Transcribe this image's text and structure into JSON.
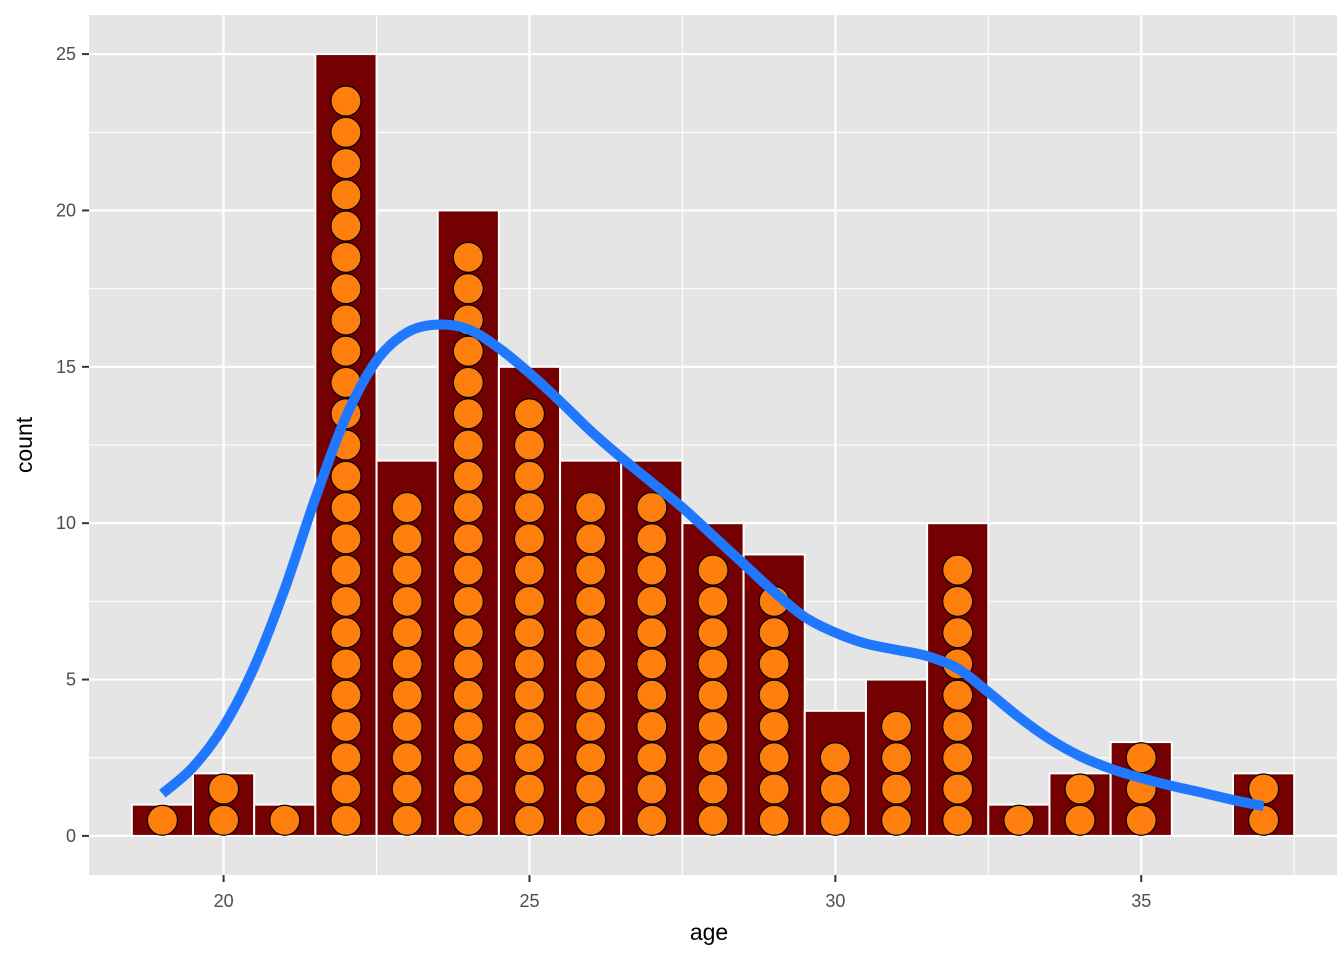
{
  "chart_data": {
    "type": "bar",
    "xlabel": "age",
    "ylabel": "count",
    "x_ticks": [
      20,
      25,
      30,
      35
    ],
    "y_ticks": [
      0,
      5,
      10,
      15,
      20,
      25
    ],
    "xlim": [
      17.8,
      38.2
    ],
    "ylim": [
      -1.25,
      26.25
    ],
    "bins": [
      {
        "age": 19,
        "count": 1
      },
      {
        "age": 20,
        "count": 2
      },
      {
        "age": 21,
        "count": 1
      },
      {
        "age": 22,
        "count": 25
      },
      {
        "age": 23,
        "count": 12
      },
      {
        "age": 24,
        "count": 20
      },
      {
        "age": 25,
        "count": 15
      },
      {
        "age": 26,
        "count": 12
      },
      {
        "age": 27,
        "count": 12
      },
      {
        "age": 28,
        "count": 10
      },
      {
        "age": 29,
        "count": 9
      },
      {
        "age": 30,
        "count": 4
      },
      {
        "age": 31,
        "count": 5
      },
      {
        "age": 32,
        "count": 10
      },
      {
        "age": 33,
        "count": 1
      },
      {
        "age": 34,
        "count": 2
      },
      {
        "age": 35,
        "count": 3
      },
      {
        "age": 37,
        "count": 2
      }
    ],
    "dots_per_bin": [
      1,
      2,
      1,
      24,
      11,
      19,
      14,
      11,
      11,
      9,
      8,
      3,
      4,
      9,
      1,
      2,
      3,
      2
    ],
    "density_curve": {
      "x": [
        19,
        19.5,
        20,
        20.5,
        21,
        21.5,
        22,
        22.5,
        23,
        23.5,
        24,
        24.5,
        25,
        25.5,
        26,
        26.5,
        27,
        27.5,
        28,
        28.5,
        29,
        29.5,
        30,
        30.5,
        31,
        31.5,
        32,
        32.5,
        33,
        33.5,
        34,
        34.5,
        35,
        35.5,
        36,
        36.5,
        37
      ],
      "y": [
        1.35,
        2.2,
        3.5,
        5.4,
        7.9,
        10.8,
        13.4,
        15.2,
        16.1,
        16.35,
        16.2,
        15.6,
        14.8,
        13.9,
        12.95,
        12.1,
        11.3,
        10.5,
        9.6,
        8.7,
        7.8,
        7.0,
        6.5,
        6.15,
        5.95,
        5.75,
        5.35,
        4.6,
        3.8,
        3.1,
        2.55,
        2.15,
        1.85,
        1.6,
        1.38,
        1.15,
        0.95
      ]
    },
    "colors": {
      "panel_background": "#e5e5e5",
      "grid": "#ffffff",
      "bar_fill": "#740001",
      "bar_outline": "#ffffff",
      "dot_fill": "#ff7f0e",
      "dot_outline": "#000000",
      "curve": "#1f78ff"
    },
    "grid": true,
    "legend": "none"
  }
}
